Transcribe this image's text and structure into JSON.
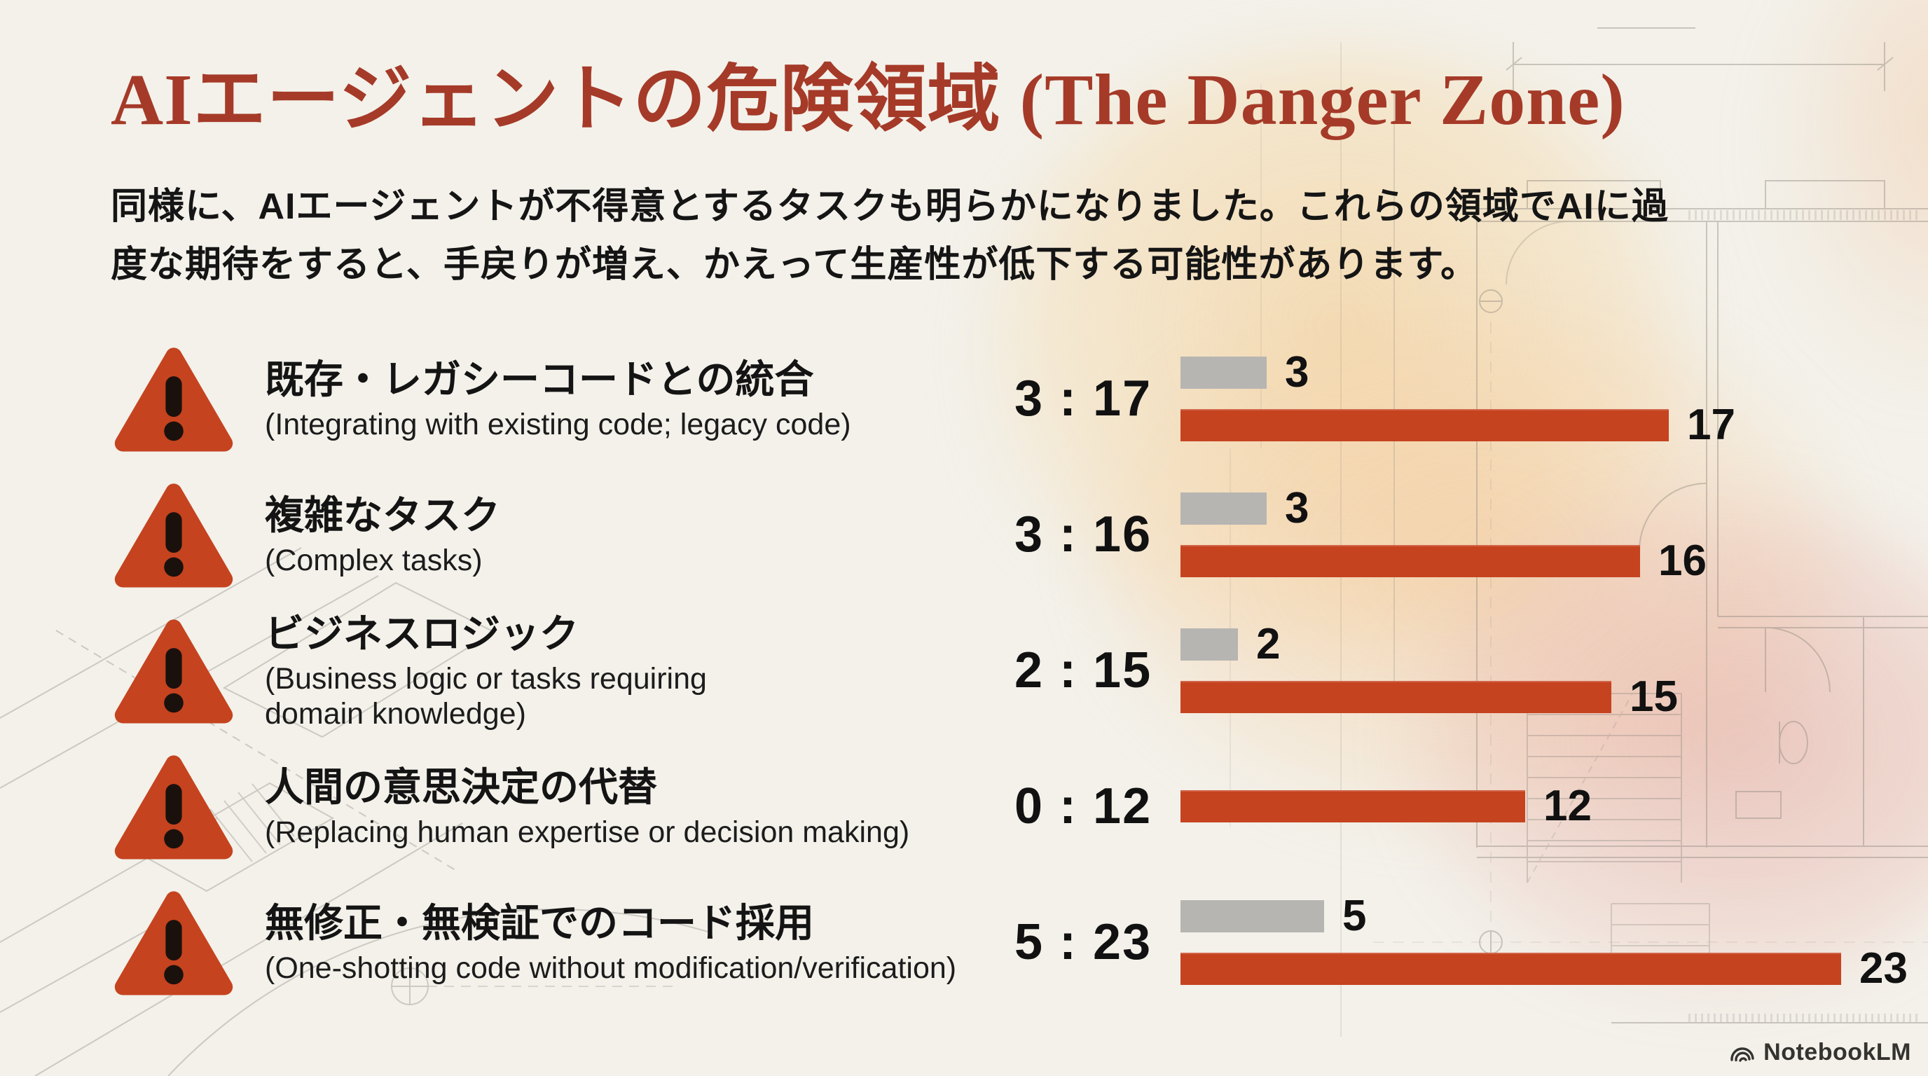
{
  "title": "AIエージェントの危険領域 (The Danger Zone)",
  "intro_lines": [
    "同様に、AIエージェントが不得意とするタスクも明らかになりました。これらの領域でAIに過",
    "度な期待をすると、手戻りが増え、かえって生産性が低下する可能性があります。"
  ],
  "rows": [
    {
      "jp": "既存・レガシーコードとの統合",
      "en_lines": [
        "(Integrating with existing code; legacy code)"
      ],
      "ratio": "3 : 17",
      "gray": 3,
      "red": 17
    },
    {
      "jp": "複雑なタスク",
      "en_lines": [
        "(Complex tasks)"
      ],
      "ratio": "3 : 16",
      "gray": 3,
      "red": 16
    },
    {
      "jp": "ビジネスロジック",
      "en_lines": [
        "(Business logic or tasks requiring",
        "domain knowledge)"
      ],
      "ratio": "2 : 15",
      "gray": 2,
      "red": 15
    },
    {
      "jp": "人間の意思決定の代替",
      "en_lines": [
        "(Replacing human expertise or decision making)"
      ],
      "ratio": "0 : 12",
      "gray": 0,
      "red": 12
    },
    {
      "jp": "無修正・無検証でのコード採用",
      "en_lines": [
        "(One-shotting code without modification/verification)"
      ],
      "ratio": "5 : 23",
      "gray": 5,
      "red": 23
    }
  ],
  "chart_data": {
    "type": "bar",
    "orientation": "horizontal",
    "title": "AIエージェントの危険領域 (The Danger Zone)",
    "categories": [
      "既存・レガシーコードとの統合 (Integrating with existing code; legacy code)",
      "複雑なタスク (Complex tasks)",
      "ビジネスロジック (Business logic or tasks requiring domain knowledge)",
      "人間の意思決定の代替 (Replacing human expertise or decision making)",
      "無修正・無検証でのコード採用 (One-shotting code without modification/verification)"
    ],
    "series": [
      {
        "name": "gray",
        "values": [
          3,
          3,
          2,
          0,
          5
        ],
        "color": "#b7b5b2"
      },
      {
        "name": "red",
        "values": [
          17,
          16,
          15,
          12,
          23
        ],
        "color": "#c64320"
      }
    ],
    "ratio_labels": [
      "3 : 17",
      "3 : 16",
      "2 : 15",
      "0 : 12",
      "5 : 23"
    ],
    "value_labels": true,
    "xlim": [
      0,
      23
    ],
    "grid": false,
    "legend": false
  },
  "colors": {
    "accent_red": "#a53a28",
    "bar_red": "#c64320",
    "bar_gray": "#b7b5b2",
    "text": "#141414",
    "background": "#f3f1ea"
  },
  "icons": {
    "warning": "warning-triangle-icon",
    "brand": "notebooklm-logo-icon"
  },
  "footer": {
    "brand": "NotebookLM"
  }
}
